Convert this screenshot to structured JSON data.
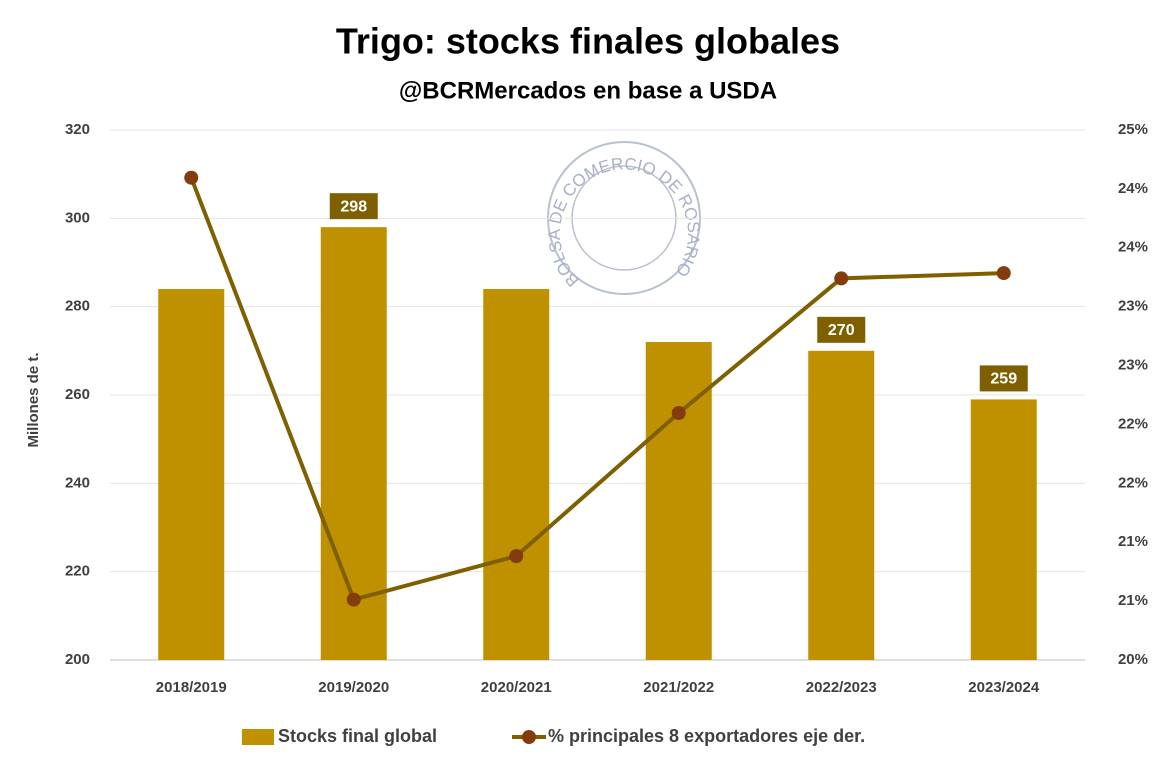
{
  "chart_data": {
    "type": "bar_line",
    "title": "Trigo: stocks finales globales",
    "subtitle": "@BCRMercados en base a USDA",
    "watermark": "BOLSA DE COMERCIO DE ROSARIO",
    "ylabel": "Millones de t.",
    "categories": [
      "2018/2019",
      "2019/2020",
      "2020/2021",
      "2021/2022",
      "2022/2023",
      "2023/2024"
    ],
    "series": [
      {
        "name": "Stocks final global",
        "type": "bar",
        "color": "#bf9000",
        "label_color": "#7f6000",
        "values": [
          284,
          298,
          284,
          272,
          270,
          259
        ],
        "value_labels": [
          null,
          "298",
          null,
          null,
          "270",
          "259"
        ]
      },
      {
        "name": "% principales 8 exportadores eje der.",
        "type": "line",
        "axis": "y2",
        "color": "#7f6000",
        "marker_color": "#843c0c",
        "values": [
          24.55,
          20.57,
          20.98,
          22.33,
          23.6,
          23.65
        ]
      }
    ],
    "ylim": [
      200,
      320
    ],
    "yticks": [
      200,
      220,
      240,
      260,
      280,
      300,
      320
    ],
    "y2lim": [
      20,
      25
    ],
    "y2ticks": [
      {
        "value": 20,
        "label": "20%"
      },
      {
        "value": 20.5556,
        "label": "21%"
      },
      {
        "value": 21.1111,
        "label": "21%"
      },
      {
        "value": 21.6667,
        "label": "22%"
      },
      {
        "value": 22.2222,
        "label": "22%"
      },
      {
        "value": 22.7778,
        "label": "23%"
      },
      {
        "value": 23.3333,
        "label": "23%"
      },
      {
        "value": 23.8889,
        "label": "24%"
      },
      {
        "value": 24.4444,
        "label": "24%"
      },
      {
        "value": 25,
        "label": "25%"
      }
    ],
    "grid": true,
    "legend": "bottom"
  }
}
